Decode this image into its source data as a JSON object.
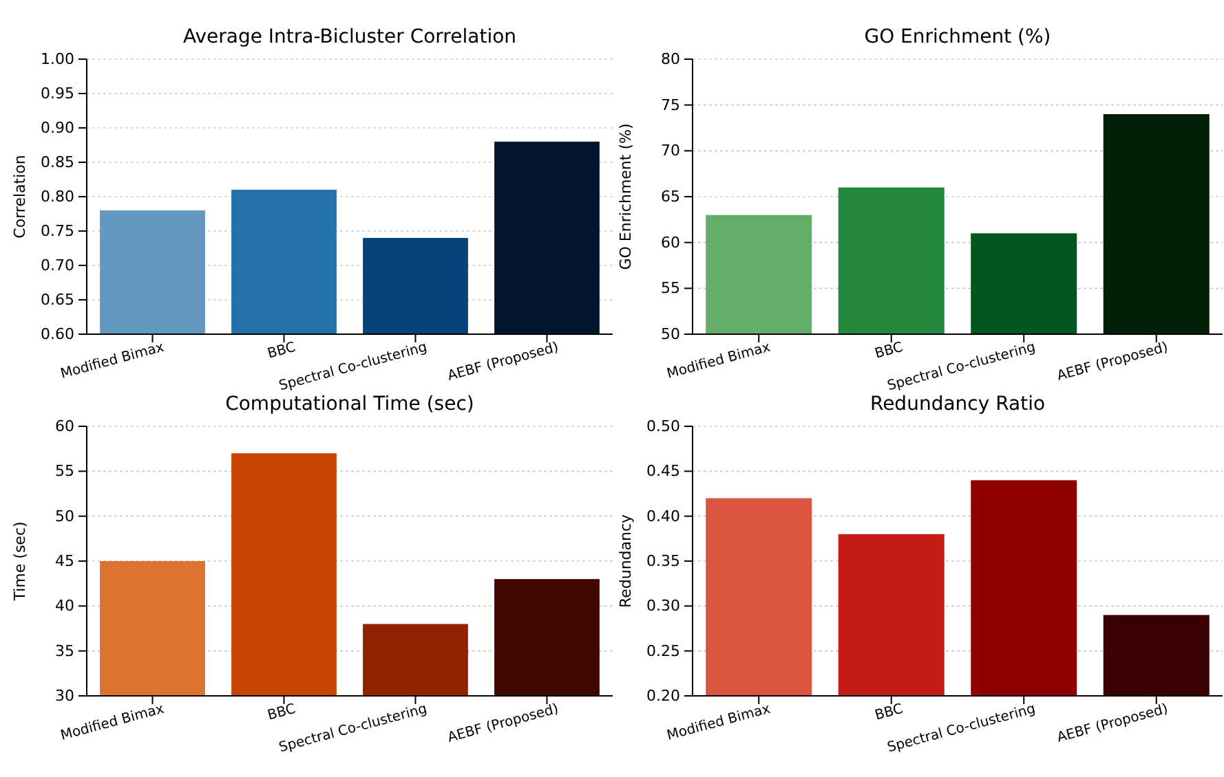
{
  "chart_data": [
    {
      "type": "bar",
      "title": "Average Intra-Bicluster Correlation",
      "ylabel": "Correlation",
      "categories": [
        "Modified Bimax",
        "BBC",
        "Spectral Co-clustering",
        "AEBF (Proposed)"
      ],
      "values": [
        0.78,
        0.81,
        0.74,
        0.88
      ],
      "colors": [
        "#6399c1",
        "#2470a8",
        "#08427a",
        "#02152f"
      ],
      "ylim": [
        0.6,
        1.0
      ],
      "yticks": [
        {
          "value": 0.6,
          "label": "0.60"
        },
        {
          "value": 0.65,
          "label": "0.65"
        },
        {
          "value": 0.7,
          "label": "0.70"
        },
        {
          "value": 0.75,
          "label": "0.75"
        },
        {
          "value": 0.8,
          "label": "0.80"
        },
        {
          "value": 0.85,
          "label": "0.85"
        },
        {
          "value": 0.9,
          "label": "0.90"
        },
        {
          "value": 0.95,
          "label": "0.95"
        },
        {
          "value": 1.0,
          "label": "1.00"
        }
      ],
      "grid": "y"
    },
    {
      "type": "bar",
      "title": "GO Enrichment (%)",
      "ylabel": "GO Enrichment (%)",
      "categories": [
        "Modified Bimax",
        "BBC",
        "Spectral Co-clustering",
        "AEBF (Proposed)"
      ],
      "values": [
        63,
        66,
        61,
        74
      ],
      "colors": [
        "#63ad68",
        "#23873d",
        "#03561f",
        "#002005"
      ],
      "ylim": [
        50,
        80
      ],
      "yticks": [
        50,
        55,
        60,
        65,
        70,
        75,
        80
      ],
      "grid": "y"
    },
    {
      "type": "bar",
      "title": "Computational Time (sec)",
      "ylabel": "Time (sec)",
      "categories": [
        "Modified Bimax",
        "BBC",
        "Spectral Co-clustering",
        "AEBF (Proposed)"
      ],
      "values": [
        45,
        57,
        38,
        43
      ],
      "colors": [
        "#dc7430",
        "#c84400",
        "#922200",
        "#400800"
      ],
      "ylim": [
        30,
        60
      ],
      "yticks": [
        30,
        35,
        40,
        45,
        50,
        55,
        60
      ],
      "grid": "y"
    },
    {
      "type": "bar",
      "title": "Redundancy Ratio",
      "ylabel": "Redundancy",
      "categories": [
        "Modified Bimax",
        "BBC",
        "Spectral Co-clustering",
        "AEBF (Proposed)"
      ],
      "values": [
        0.42,
        0.38,
        0.44,
        0.29
      ],
      "colors": [
        "#da5440",
        "#c41c14",
        "#900000",
        "#3b0000"
      ],
      "ylim": [
        0.2,
        0.5
      ],
      "yticks": [
        {
          "value": 0.2,
          "label": "0.20"
        },
        {
          "value": 0.25,
          "label": "0.25"
        },
        {
          "value": 0.3,
          "label": "0.30"
        },
        {
          "value": 0.35,
          "label": "0.35"
        },
        {
          "value": 0.4,
          "label": "0.40"
        },
        {
          "value": 0.45,
          "label": "0.45"
        },
        {
          "value": 0.5,
          "label": "0.50"
        }
      ],
      "grid": "y"
    }
  ]
}
